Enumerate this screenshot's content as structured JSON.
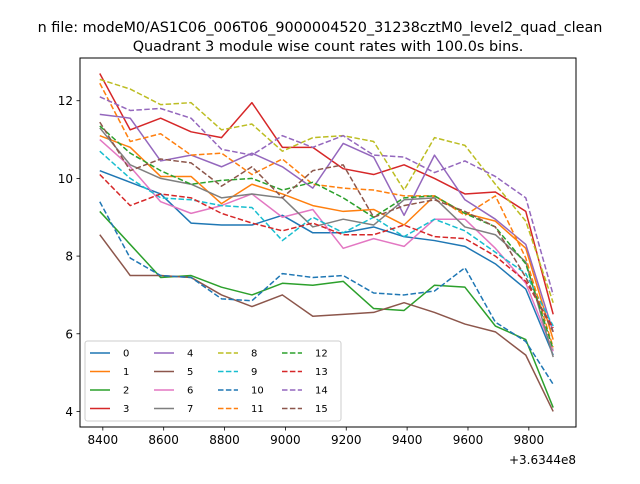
{
  "figure": {
    "suptitle": "n file: modeM0/AS1C06_006T06_9000004520_31238cztM0_level2_quad_clean",
    "offset_label": "+3.6344e8"
  },
  "chart_data": {
    "type": "line",
    "title": "Quadrant 3 module wise count rates with 100.0s bins.",
    "xlabel": "",
    "ylabel": "",
    "x_offset": 363440000,
    "x": [
      8390,
      8490,
      8590,
      8690,
      8790,
      8890,
      8990,
      9090,
      9190,
      9290,
      9390,
      9490,
      9590,
      9690,
      9790,
      9880
    ],
    "xlim": [
      8325,
      9955
    ],
    "ylim": [
      3.6,
      13.1
    ],
    "xticks": [
      8400,
      8600,
      8800,
      9000,
      9200,
      9400,
      9600,
      9800
    ],
    "yticks": [
      4,
      6,
      8,
      10,
      12
    ],
    "legend": {
      "placement": "lower left",
      "columns": 4
    },
    "grid": false,
    "series": [
      {
        "name": "0",
        "color": "#1f77b4",
        "dash": "solid",
        "values": [
          10.2,
          9.9,
          9.6,
          8.85,
          8.8,
          8.8,
          9.05,
          8.6,
          8.6,
          8.75,
          8.5,
          8.4,
          8.25,
          7.8,
          7.15,
          5.45
        ]
      },
      {
        "name": "1",
        "color": "#ff7f0e",
        "dash": "solid",
        "values": [
          11.1,
          10.8,
          10.05,
          10.05,
          9.35,
          9.85,
          9.6,
          9.3,
          9.15,
          9.2,
          8.8,
          9.55,
          9.1,
          8.9,
          8.2,
          5.85
        ]
      },
      {
        "name": "2",
        "color": "#2ca02c",
        "dash": "solid",
        "values": [
          9.15,
          8.3,
          7.45,
          7.5,
          7.2,
          7.0,
          7.3,
          7.25,
          7.35,
          6.65,
          6.6,
          7.25,
          7.2,
          6.2,
          5.85,
          4.1
        ]
      },
      {
        "name": "3",
        "color": "#d62728",
        "dash": "solid",
        "values": [
          12.7,
          11.25,
          11.55,
          11.2,
          11.05,
          11.95,
          10.8,
          10.8,
          10.25,
          10.1,
          10.35,
          10.0,
          9.6,
          9.65,
          9.15,
          6.5
        ]
      },
      {
        "name": "4",
        "color": "#9467bd",
        "dash": "solid",
        "values": [
          11.65,
          11.55,
          10.45,
          10.6,
          10.3,
          10.65,
          10.3,
          9.75,
          10.9,
          10.55,
          9.05,
          10.6,
          9.45,
          8.95,
          8.3,
          6.05
        ]
      },
      {
        "name": "5",
        "color": "#8c564b",
        "dash": "solid",
        "values": [
          8.55,
          7.5,
          7.5,
          7.45,
          7.0,
          6.7,
          7.0,
          6.45,
          6.5,
          6.55,
          6.8,
          6.55,
          6.25,
          6.05,
          5.45,
          4.0
        ]
      },
      {
        "name": "6",
        "color": "#e377c2",
        "dash": "solid",
        "values": [
          11.0,
          10.3,
          9.4,
          9.1,
          9.3,
          9.6,
          9.0,
          9.2,
          8.2,
          8.45,
          8.25,
          8.95,
          8.95,
          8.2,
          7.3,
          5.55
        ]
      },
      {
        "name": "7",
        "color": "#7f7f7f",
        "dash": "solid",
        "values": [
          11.3,
          10.35,
          10.0,
          9.85,
          9.5,
          9.6,
          9.5,
          8.75,
          8.95,
          8.8,
          9.45,
          9.5,
          8.75,
          8.55,
          7.85,
          5.4
        ]
      },
      {
        "name": "8",
        "color": "#bcbd22",
        "dash": "dashed",
        "values": [
          12.55,
          12.3,
          11.9,
          11.95,
          11.25,
          11.4,
          10.7,
          11.05,
          11.1,
          10.95,
          9.7,
          11.05,
          10.85,
          9.85,
          8.9,
          6.8
        ]
      },
      {
        "name": "9",
        "color": "#17becf",
        "dash": "dashed",
        "values": [
          10.7,
          10.0,
          9.5,
          9.45,
          9.3,
          9.25,
          8.4,
          9.0,
          8.6,
          9.0,
          8.5,
          8.95,
          8.65,
          8.1,
          7.55,
          6.2
        ]
      },
      {
        "name": "10",
        "color": "#1f77b4",
        "dash": "dashed",
        "values": [
          9.4,
          7.95,
          7.5,
          7.45,
          6.9,
          6.85,
          7.55,
          7.45,
          7.5,
          7.05,
          7.0,
          7.1,
          7.7,
          6.3,
          5.8,
          4.7
        ]
      },
      {
        "name": "11",
        "color": "#ff7f0e",
        "dash": "dashed",
        "values": [
          12.45,
          10.95,
          11.15,
          10.6,
          10.65,
          10.1,
          10.5,
          9.85,
          9.75,
          9.7,
          9.55,
          9.55,
          9.05,
          9.55,
          7.95,
          5.65
        ]
      },
      {
        "name": "12",
        "color": "#2ca02c",
        "dash": "dashed",
        "values": [
          11.35,
          10.65,
          10.2,
          9.85,
          9.95,
          10.0,
          9.7,
          9.9,
          9.5,
          9.0,
          9.5,
          9.55,
          9.1,
          8.75,
          7.8,
          5.6
        ]
      },
      {
        "name": "13",
        "color": "#d62728",
        "dash": "dashed",
        "values": [
          10.1,
          9.3,
          9.6,
          9.5,
          9.1,
          8.85,
          8.65,
          8.85,
          8.55,
          8.55,
          8.8,
          8.5,
          8.45,
          8.0,
          7.35,
          6.15
        ]
      },
      {
        "name": "14",
        "color": "#9467bd",
        "dash": "dashed",
        "values": [
          12.1,
          11.75,
          11.8,
          11.55,
          10.75,
          10.6,
          11.1,
          10.8,
          11.1,
          10.6,
          10.55,
          10.15,
          10.45,
          10.05,
          9.5,
          7.0
        ]
      },
      {
        "name": "15",
        "color": "#8c564b",
        "dash": "dashed",
        "values": [
          11.45,
          10.2,
          10.5,
          10.4,
          9.8,
          10.3,
          9.5,
          10.2,
          10.35,
          9.0,
          9.3,
          9.45,
          9.15,
          8.75,
          7.45,
          6.05
        ]
      }
    ]
  }
}
